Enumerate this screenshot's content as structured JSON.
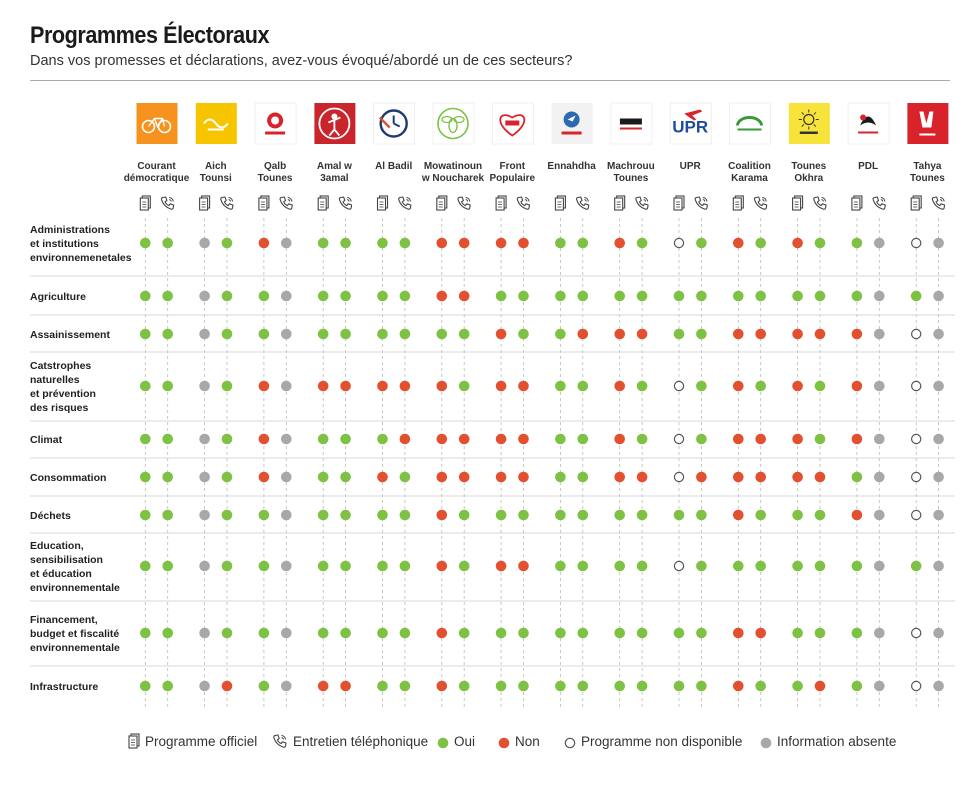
{
  "title": "Programmes Électoraux",
  "subtitle": "Dans vos promesses et déclarations, avez-vous évoqué/abordé un de ces secteurs?",
  "colors": {
    "oui": "#7dc242",
    "non": "#e2502f",
    "absent": "#a8a8a8",
    "non_disponible": "#ffffff",
    "gridline": "#bbbbbb",
    "separator": "#cccccc"
  },
  "legend": {
    "programme_officiel": "Programme officiel",
    "entretien": "Entretien téléphonique",
    "oui": "Oui",
    "non": "Non",
    "non_disponible": "Programme non disponible",
    "absent": "Information absente"
  },
  "chart_data": {
    "type": "table",
    "value_codes": {
      "O": "Oui",
      "N": "Non",
      "D": "Programme non disponible",
      "A": "Information absente"
    },
    "sub_columns": [
      "Programme officiel",
      "Entretien téléphonique"
    ],
    "parties": [
      {
        "name": [
          "Courant",
          "démocratique"
        ],
        "logo": {
          "bg": "#f6921e",
          "icon": "bicycle-icon"
        }
      },
      {
        "name": [
          "Aich",
          "Tounsi"
        ],
        "logo": {
          "bg": "#f7c400",
          "icon": "aich-tounsi-logo-icon"
        }
      },
      {
        "name": [
          "Qalb",
          "Tounes"
        ],
        "logo": {
          "bg": "#ffffff",
          "icon": "lion-icon"
        }
      },
      {
        "name": [
          "Amal w",
          "3amal"
        ],
        "logo": {
          "bg": "#c9252c",
          "icon": "figure-icon"
        }
      },
      {
        "name": [
          "Al Badil"
        ],
        "logo": {
          "bg": "#ffffff",
          "icon": "clock-icon"
        }
      },
      {
        "name": [
          "Mowatinoun",
          "w Noucharek"
        ],
        "logo": {
          "bg": "#ffffff",
          "icon": "bee-icon"
        }
      },
      {
        "name": [
          "Front",
          "Populaire"
        ],
        "logo": {
          "bg": "#ffffff",
          "icon": "heart-icon"
        }
      },
      {
        "name": [
          "Ennahdha"
        ],
        "logo": {
          "bg": "#f2f2f2",
          "icon": "ennahdha-dove-icon"
        }
      },
      {
        "name": [
          "Machrouu",
          "Tounes"
        ],
        "logo": {
          "bg": "#ffffff",
          "icon": "machrouu-logo-icon"
        }
      },
      {
        "name": [
          "UPR"
        ],
        "logo": {
          "bg": "#ffffff",
          "icon": "plane-icon",
          "text": "UPR"
        }
      },
      {
        "name": [
          "Coalition",
          "Karama"
        ],
        "logo": {
          "bg": "#ffffff",
          "icon": "karama-arc-icon"
        }
      },
      {
        "name": [
          "Tounes",
          "Okhra"
        ],
        "logo": {
          "bg": "#f7e33a",
          "icon": "sun-icon"
        }
      },
      {
        "name": [
          "PDL"
        ],
        "logo": {
          "bg": "#ffffff",
          "icon": "pdl-emblem-icon"
        }
      },
      {
        "name": [
          "Tahya",
          "Tounes"
        ],
        "logo": {
          "bg": "#d8232a",
          "icon": "victory-hand-icon"
        }
      }
    ],
    "sectors": [
      {
        "label": [
          "Administrations",
          "et institutions",
          "environnemenetales"
        ],
        "values": [
          [
            "O",
            "O"
          ],
          [
            "A",
            "O"
          ],
          [
            "N",
            "A"
          ],
          [
            "O",
            "O"
          ],
          [
            "O",
            "O"
          ],
          [
            "N",
            "N"
          ],
          [
            "N",
            "N"
          ],
          [
            "O",
            "O"
          ],
          [
            "N",
            "O"
          ],
          [
            "D",
            "O"
          ],
          [
            "N",
            "O"
          ],
          [
            "N",
            "O"
          ],
          [
            "O",
            "A"
          ],
          [
            "D",
            "A"
          ]
        ]
      },
      {
        "label": [
          "Agriculture"
        ],
        "values": [
          [
            "O",
            "O"
          ],
          [
            "A",
            "O"
          ],
          [
            "O",
            "A"
          ],
          [
            "O",
            "O"
          ],
          [
            "O",
            "O"
          ],
          [
            "N",
            "N"
          ],
          [
            "O",
            "O"
          ],
          [
            "O",
            "O"
          ],
          [
            "O",
            "O"
          ],
          [
            "O",
            "O"
          ],
          [
            "O",
            "O"
          ],
          [
            "O",
            "O"
          ],
          [
            "O",
            "A"
          ],
          [
            "O",
            "A"
          ]
        ]
      },
      {
        "label": [
          "Assainissement"
        ],
        "values": [
          [
            "O",
            "O"
          ],
          [
            "A",
            "O"
          ],
          [
            "O",
            "A"
          ],
          [
            "O",
            "O"
          ],
          [
            "O",
            "O"
          ],
          [
            "O",
            "O"
          ],
          [
            "N",
            "O"
          ],
          [
            "O",
            "N"
          ],
          [
            "N",
            "N"
          ],
          [
            "O",
            "O"
          ],
          [
            "N",
            "N"
          ],
          [
            "N",
            "N"
          ],
          [
            "N",
            "A"
          ],
          [
            "D",
            "A"
          ]
        ]
      },
      {
        "label": [
          "Catstrophes",
          "naturelles",
          "et prévention",
          "des risques"
        ],
        "values": [
          [
            "O",
            "O"
          ],
          [
            "A",
            "O"
          ],
          [
            "N",
            "A"
          ],
          [
            "N",
            "N"
          ],
          [
            "N",
            "N"
          ],
          [
            "N",
            "O"
          ],
          [
            "N",
            "N"
          ],
          [
            "O",
            "O"
          ],
          [
            "N",
            "O"
          ],
          [
            "D",
            "O"
          ],
          [
            "N",
            "O"
          ],
          [
            "N",
            "O"
          ],
          [
            "N",
            "A"
          ],
          [
            "D",
            "A"
          ]
        ]
      },
      {
        "label": [
          "Climat"
        ],
        "values": [
          [
            "O",
            "O"
          ],
          [
            "A",
            "O"
          ],
          [
            "N",
            "A"
          ],
          [
            "O",
            "O"
          ],
          [
            "O",
            "N"
          ],
          [
            "N",
            "N"
          ],
          [
            "N",
            "N"
          ],
          [
            "O",
            "O"
          ],
          [
            "N",
            "O"
          ],
          [
            "D",
            "O"
          ],
          [
            "N",
            "N"
          ],
          [
            "N",
            "O"
          ],
          [
            "N",
            "A"
          ],
          [
            "D",
            "A"
          ]
        ]
      },
      {
        "label": [
          "Consommation"
        ],
        "values": [
          [
            "O",
            "O"
          ],
          [
            "A",
            "O"
          ],
          [
            "N",
            "A"
          ],
          [
            "O",
            "O"
          ],
          [
            "N",
            "O"
          ],
          [
            "N",
            "N"
          ],
          [
            "N",
            "N"
          ],
          [
            "O",
            "O"
          ],
          [
            "N",
            "N"
          ],
          [
            "D",
            "N"
          ],
          [
            "N",
            "N"
          ],
          [
            "N",
            "N"
          ],
          [
            "O",
            "A"
          ],
          [
            "D",
            "A"
          ]
        ]
      },
      {
        "label": [
          "Déchets"
        ],
        "values": [
          [
            "O",
            "O"
          ],
          [
            "A",
            "O"
          ],
          [
            "O",
            "A"
          ],
          [
            "O",
            "O"
          ],
          [
            "O",
            "O"
          ],
          [
            "N",
            "O"
          ],
          [
            "O",
            "O"
          ],
          [
            "O",
            "O"
          ],
          [
            "O",
            "O"
          ],
          [
            "O",
            "O"
          ],
          [
            "N",
            "O"
          ],
          [
            "O",
            "O"
          ],
          [
            "N",
            "A"
          ],
          [
            "D",
            "A"
          ]
        ]
      },
      {
        "label": [
          "Education,",
          "sensibilisation",
          "et éducation",
          "environnementale"
        ],
        "values": [
          [
            "O",
            "O"
          ],
          [
            "A",
            "O"
          ],
          [
            "O",
            "A"
          ],
          [
            "O",
            "O"
          ],
          [
            "O",
            "O"
          ],
          [
            "N",
            "O"
          ],
          [
            "N",
            "N"
          ],
          [
            "O",
            "O"
          ],
          [
            "O",
            "O"
          ],
          [
            "D",
            "O"
          ],
          [
            "O",
            "O"
          ],
          [
            "O",
            "O"
          ],
          [
            "O",
            "A"
          ],
          [
            "O",
            "A"
          ]
        ]
      },
      {
        "label": [
          "Financement,",
          "budget et fiscalité",
          "environnementale"
        ],
        "values": [
          [
            "O",
            "O"
          ],
          [
            "A",
            "O"
          ],
          [
            "O",
            "A"
          ],
          [
            "O",
            "O"
          ],
          [
            "O",
            "O"
          ],
          [
            "N",
            "O"
          ],
          [
            "O",
            "O"
          ],
          [
            "O",
            "O"
          ],
          [
            "O",
            "O"
          ],
          [
            "O",
            "O"
          ],
          [
            "N",
            "N"
          ],
          [
            "O",
            "O"
          ],
          [
            "O",
            "A"
          ],
          [
            "D",
            "A"
          ]
        ]
      },
      {
        "label": [
          "Infrastructure"
        ],
        "values": [
          [
            "O",
            "O"
          ],
          [
            "A",
            "N"
          ],
          [
            "O",
            "A"
          ],
          [
            "N",
            "N"
          ],
          [
            "O",
            "O"
          ],
          [
            "N",
            "O"
          ],
          [
            "O",
            "O"
          ],
          [
            "O",
            "O"
          ],
          [
            "O",
            "O"
          ],
          [
            "O",
            "O"
          ],
          [
            "N",
            "O"
          ],
          [
            "O",
            "N"
          ],
          [
            "O",
            "A"
          ],
          [
            "D",
            "A"
          ]
        ]
      }
    ]
  }
}
